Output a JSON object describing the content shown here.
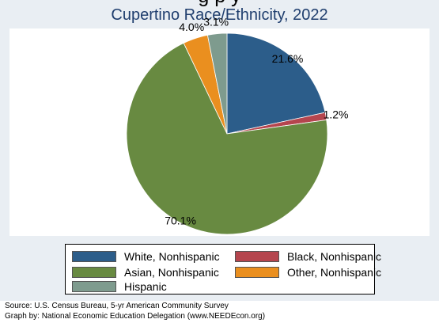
{
  "header_cutoff_text": "g          p          y",
  "chart_data": {
    "type": "pie",
    "title": "Cupertino Race/Ethnicity, 2022",
    "slices": [
      {
        "name": "White, Nonhispanic",
        "value": 21.6,
        "label": "21.6%",
        "color": "#2c5d8a"
      },
      {
        "name": "Black, Nonhispanic",
        "value": 1.2,
        "label": "1.2%",
        "color": "#b5454e"
      },
      {
        "name": "Asian, Nonhispanic",
        "value": 70.1,
        "label": "70.1%",
        "color": "#688a41"
      },
      {
        "name": "Other, Nonhispanic",
        "value": 4.0,
        "label": "4.0%",
        "color": "#ea8f1f"
      },
      {
        "name": "Hispanic",
        "value": 3.1,
        "label": "3.1%",
        "color": "#7e9b8e"
      }
    ],
    "legend": {
      "position": "bottom",
      "items": [
        {
          "label": "White, Nonhispanic",
          "color": "#2c5d8a"
        },
        {
          "label": "Black, Nonhispanic",
          "color": "#b5454e"
        },
        {
          "label": "Asian, Nonhispanic",
          "color": "#688a41"
        },
        {
          "label": "Other, Nonhispanic",
          "color": "#ea8f1f"
        },
        {
          "label": "Hispanic",
          "color": "#7e9b8e"
        }
      ]
    }
  },
  "footnotes": {
    "source": "Source:  U.S. Census Bureau, 5-yr American Community Survey",
    "graph_by": "Graph by: National Economic Education Delegation (www.NEEDEcon.org)"
  },
  "colors": {
    "panel_background": "#e9eef3",
    "title_color": "#1f3e6e",
    "slice_edge": "#ffffff"
  }
}
